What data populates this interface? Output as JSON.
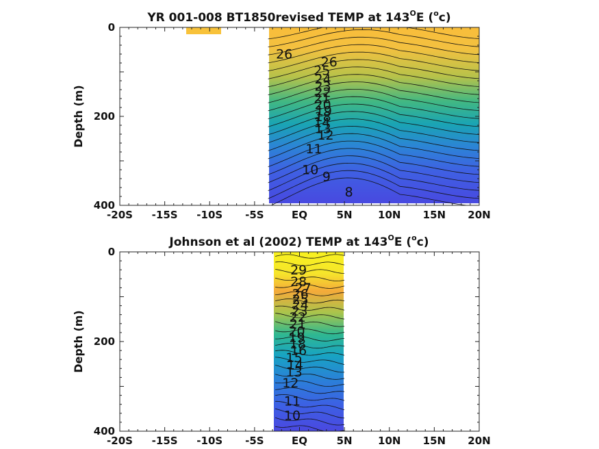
{
  "chart_data": [
    {
      "type": "heatmap",
      "title": "YR 001-008 BT1850revised TEMP at 143",
      "title_sup": "O",
      "title_mid": "E (",
      "title_sup2": "o",
      "title_end": "c)",
      "xlabel": "",
      "ylabel": "Depth (m)",
      "xlim": [
        -20,
        20
      ],
      "ylim": [
        0,
        400
      ],
      "x_tick_labels": [
        "-20S",
        "-15S",
        "-10S",
        "-5S",
        "EQ",
        "5N",
        "10N",
        "15N",
        "20N"
      ],
      "x_tick_values": [
        -20,
        -15,
        -10,
        -5,
        0,
        5,
        10,
        15,
        20
      ],
      "y_tick_labels": [
        "0",
        "200",
        "400"
      ],
      "y_tick_values": [
        0,
        200,
        400
      ],
      "data_extent": {
        "x": [
          -3.5,
          20
        ],
        "y": [
          0,
          395
        ]
      },
      "patch_extent": {
        "x": [
          -12,
          -8.3
        ],
        "y": [
          0,
          10
        ]
      },
      "surface_temp": 27,
      "contour_labels": [
        {
          "text": "26",
          "x": -1.7,
          "y": 70
        },
        {
          "text": "26",
          "x": 3.3,
          "y": 88
        },
        {
          "text": "25",
          "x": 2.5,
          "y": 107
        },
        {
          "text": "24",
          "x": 2.6,
          "y": 126
        },
        {
          "text": "23",
          "x": 2.6,
          "y": 142
        },
        {
          "text": "22",
          "x": 2.6,
          "y": 156
        },
        {
          "text": "21",
          "x": 2.5,
          "y": 170
        },
        {
          "text": "20",
          "x": 2.6,
          "y": 184
        },
        {
          "text": "19",
          "x": 2.7,
          "y": 198
        },
        {
          "text": "18",
          "x": 2.6,
          "y": 211
        },
        {
          "text": "14",
          "x": 2.5,
          "y": 224
        },
        {
          "text": "13",
          "x": 2.6,
          "y": 238
        },
        {
          "text": "12",
          "x": 2.9,
          "y": 252
        },
        {
          "text": "11",
          "x": 1.6,
          "y": 283
        },
        {
          "text": "10",
          "x": 1.2,
          "y": 330
        },
        {
          "text": "9",
          "x": 3.0,
          "y": 345
        },
        {
          "text": "8",
          "x": 5.5,
          "y": 380
        }
      ]
    },
    {
      "type": "heatmap",
      "title": "Johnson et al (2002) TEMP at 143",
      "title_sup": "O",
      "title_mid": "E (",
      "title_sup2": "o",
      "title_end": "c)",
      "xlabel": "",
      "ylabel": "Depth (m)",
      "xlim": [
        -20,
        20
      ],
      "ylim": [
        0,
        400
      ],
      "x_tick_labels": [
        "-20S",
        "-15S",
        "-10S",
        "-5S",
        "EQ",
        "5N",
        "10N",
        "15N",
        "20N"
      ],
      "x_tick_values": [
        -20,
        -15,
        -10,
        -5,
        0,
        5,
        10,
        15,
        20
      ],
      "y_tick_labels": [
        "0",
        "200",
        "400"
      ],
      "y_tick_values": [
        0,
        200,
        400
      ],
      "data_extent": {
        "x": [
          -2.7,
          5
        ],
        "y": [
          0,
          400
        ]
      },
      "surface_temp": 29.5,
      "contour_labels": [
        {
          "text": "29",
          "x": -0.1,
          "y": 50
        },
        {
          "text": "28",
          "x": -0.1,
          "y": 76
        },
        {
          "text": "27",
          "x": 0.4,
          "y": 90
        },
        {
          "text": "26",
          "x": 0.1,
          "y": 104
        },
        {
          "text": "25",
          "x": 0.1,
          "y": 116
        },
        {
          "text": "24",
          "x": 0.1,
          "y": 128
        },
        {
          "text": "23",
          "x": 0.0,
          "y": 142
        },
        {
          "text": "22",
          "x": -0.2,
          "y": 156
        },
        {
          "text": "21",
          "x": -0.2,
          "y": 171
        },
        {
          "text": "20",
          "x": -0.3,
          "y": 187
        },
        {
          "text": "19",
          "x": -0.3,
          "y": 201
        },
        {
          "text": "18",
          "x": -0.2,
          "y": 215
        },
        {
          "text": "16",
          "x": -0.1,
          "y": 230
        },
        {
          "text": "15",
          "x": -0.6,
          "y": 246
        },
        {
          "text": "14",
          "x": -0.5,
          "y": 262
        },
        {
          "text": "13",
          "x": -0.6,
          "y": 278
        },
        {
          "text": "12",
          "x": -1.0,
          "y": 302
        },
        {
          "text": "11",
          "x": -0.8,
          "y": 343
        },
        {
          "text": "10",
          "x": -0.8,
          "y": 375
        }
      ]
    }
  ]
}
